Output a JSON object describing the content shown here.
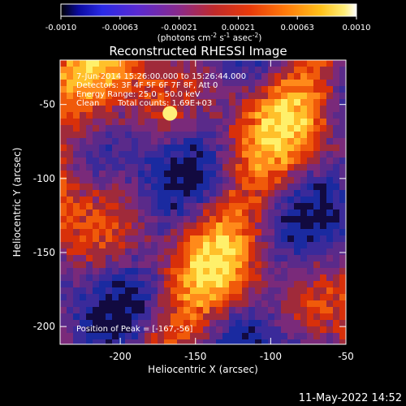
{
  "colorbar": {
    "ticks": [
      "-0.0010",
      "-0.00063",
      "-0.00021",
      "0.00021",
      "0.00063",
      "0.0010"
    ],
    "units_prefix": "(photons cm",
    "units_exp1": "-2",
    "units_mid1": " s",
    "units_exp2": "-1",
    "units_mid2": " asec",
    "units_exp3": "-2",
    "units_suffix": ")"
  },
  "title": "Reconstructed RHESSI Image",
  "annotations": {
    "time_range": "7-Jun-2014 15:26:00.000 to 15:26:44.000",
    "detectors": "Detectors: 3F 4F 5F 6F 7F 8F, Att 0",
    "energy": "Energy Range: 25.0 - 50.0 keV",
    "method": "Clean",
    "counts": "Total counts: 1.69E+03",
    "peak": "Position of Peak = [-167,-56]"
  },
  "timestamp": "11-May-2022 14:52",
  "chart_data": {
    "type": "heatmap",
    "title": "Reconstructed RHESSI Image",
    "xlabel": "Heliocentric X (arcsec)",
    "ylabel": "Heliocentric Y (arcsec)",
    "xlim": [
      -240,
      -50
    ],
    "ylim": [
      -212,
      -20
    ],
    "x_ticks": [
      -200,
      -150,
      -100,
      -50
    ],
    "y_ticks": [
      -50,
      -100,
      -150,
      -200
    ],
    "colorscale": "thermal (black-blue-purple-red-orange-yellow-white)",
    "colorbar_range": [
      -0.001,
      0.001
    ],
    "peak_position": [
      -167,
      -56
    ]
  }
}
